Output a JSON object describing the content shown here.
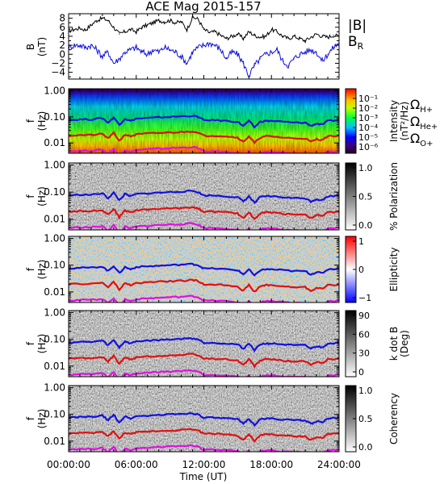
{
  "chart_data": [
    {
      "type": "line",
      "title": "ACE Mag 2015-157",
      "ylabel": "B",
      "yunit": "(nT)",
      "ylim": [
        -5.5,
        9
      ],
      "yticks": [
        "8",
        "6",
        "4",
        "2",
        "0",
        "−2",
        "−4"
      ],
      "x_time_hours": [
        0,
        0.5,
        1,
        1.5,
        2,
        2.5,
        3,
        3.5,
        4,
        4.5,
        5,
        5.5,
        6,
        6.5,
        7,
        7.5,
        8,
        8.5,
        9,
        9.5,
        10,
        10.5,
        11,
        11.5,
        12,
        12.5,
        13,
        13.5,
        14,
        14.5,
        15,
        15.5,
        16,
        16.5,
        17,
        17.5,
        18,
        18.5,
        19,
        19.5,
        20,
        20.5,
        21,
        21.5,
        22,
        22.5,
        23,
        23.5,
        24
      ],
      "series": [
        {
          "name": "|B|",
          "color": "#000000",
          "values": [
            5.2,
            5.5,
            5.8,
            5.4,
            6.5,
            7.5,
            8.0,
            7.5,
            6.0,
            4.5,
            5.0,
            5.5,
            5.0,
            6.0,
            6.5,
            7.0,
            7.5,
            7.2,
            7.5,
            7.0,
            7.2,
            5.5,
            8.2,
            7.8,
            5.5,
            4.8,
            5.0,
            4.2,
            3.5,
            4.0,
            4.5,
            3.5,
            5.0,
            4.2,
            3.8,
            4.0,
            5.5,
            5.0,
            4.0,
            3.5,
            4.0,
            3.5,
            3.0,
            3.8,
            4.5,
            4.0,
            3.8,
            4.2,
            4.0
          ]
        },
        {
          "name": "B",
          "sub": "R",
          "color": "#1010e0",
          "values": [
            1.5,
            2.0,
            2.0,
            1.5,
            2.0,
            1.0,
            -0.5,
            0.5,
            -2.0,
            -1.0,
            0.5,
            1.0,
            1.5,
            0.5,
            0.0,
            1.0,
            0.5,
            1.5,
            1.0,
            0.5,
            -0.5,
            -2.0,
            0.5,
            1.5,
            2.0,
            2.5,
            2.0,
            1.0,
            -1.0,
            0.5,
            0.0,
            -2.0,
            -4.8,
            -2.5,
            -1.0,
            0.0,
            0.5,
            1.0,
            -1.5,
            -2.5,
            -1.0,
            0.0,
            0.5,
            1.0,
            0.5,
            -1.5,
            0.0,
            1.5,
            2.5
          ]
        }
      ]
    },
    {
      "type": "heatmap",
      "ylabel": "f",
      "yunit": "(Hz)",
      "ylim": [
        0.004,
        1.2
      ],
      "ylog": true,
      "yticks": [
        "1.00",
        "0.10",
        "0.01"
      ],
      "colorbar": {
        "label": "Intensity",
        "unit": "(nT²/Hz)",
        "ticks": [
          "10⁻¹",
          "10⁻²",
          "10⁻³",
          "10⁻⁴",
          "10⁻⁵",
          "10⁻⁶"
        ],
        "scale": "rainbow"
      },
      "curves_legend": [
        {
          "label": "Ω",
          "sub": "H+",
          "color": "#1010e0"
        },
        {
          "label": "Ω",
          "sub": "He+",
          "color": "#e01010"
        },
        {
          "label": "Ω",
          "sub": "O+",
          "color": "#e010e0"
        }
      ]
    },
    {
      "type": "heatmap",
      "ylabel": "f",
      "yunit": "(Hz)",
      "ylim": [
        0.004,
        1.2
      ],
      "ylog": true,
      "yticks": [
        "1.00",
        "0.10",
        "0.01"
      ],
      "colorbar": {
        "label": "% Polarization",
        "unit": "",
        "ticks": [
          "1.0",
          "0.5",
          "0.0"
        ],
        "scale": "gray"
      }
    },
    {
      "type": "heatmap",
      "ylabel": "f",
      "yunit": "(Hz)",
      "ylim": [
        0.004,
        1.2
      ],
      "ylog": true,
      "yticks": [
        "1.00",
        "0.10",
        "0.01"
      ],
      "colorbar": {
        "label": "Ellipticity",
        "unit": "",
        "ticks": [
          "1",
          "0",
          "−1"
        ],
        "scale": "bwr"
      }
    },
    {
      "type": "heatmap",
      "ylabel": "f",
      "yunit": "(Hz)",
      "ylim": [
        0.004,
        1.2
      ],
      "ylog": true,
      "yticks": [
        "1.00",
        "0.10",
        "0.01"
      ],
      "colorbar": {
        "label": "k dot B",
        "unit": "(Deg)",
        "ticks": [
          "90",
          "60",
          "30",
          "0"
        ],
        "scale": "gray"
      }
    },
    {
      "type": "heatmap",
      "ylabel": "f",
      "yunit": "(Hz)",
      "ylim": [
        0.004,
        1.2
      ],
      "ylog": true,
      "yticks": [
        "1.00",
        "0.10",
        "0.01"
      ],
      "colorbar": {
        "label": "Coherency",
        "unit": "",
        "ticks": [
          "1.0",
          "0.5",
          "0.0"
        ],
        "scale": "gray"
      }
    }
  ],
  "gyro_curves": {
    "x_time_hours": [
      0,
      1,
      2,
      3,
      3.5,
      4,
      4.5,
      5,
      5.5,
      6,
      7,
      8,
      9,
      10,
      11,
      11.5,
      12,
      13,
      14,
      15,
      15.5,
      16,
      16.5,
      17,
      17.5,
      18,
      19,
      20,
      21,
      21.5,
      22,
      22.5,
      23,
      24
    ],
    "H+": [
      0.075,
      0.08,
      0.08,
      0.09,
      0.06,
      0.095,
      0.05,
      0.085,
      0.07,
      0.085,
      0.09,
      0.095,
      0.1,
      0.105,
      0.11,
      0.1,
      0.075,
      0.075,
      0.07,
      0.065,
      0.045,
      0.07,
      0.04,
      0.065,
      0.07,
      0.07,
      0.065,
      0.06,
      0.06,
      0.045,
      0.055,
      0.05,
      0.07,
      0.075
    ],
    "He+": [
      0.019,
      0.02,
      0.02,
      0.022,
      0.015,
      0.024,
      0.012,
      0.021,
      0.018,
      0.021,
      0.023,
      0.024,
      0.025,
      0.026,
      0.028,
      0.025,
      0.019,
      0.019,
      0.018,
      0.016,
      0.011,
      0.018,
      0.01,
      0.016,
      0.018,
      0.018,
      0.016,
      0.015,
      0.015,
      0.011,
      0.014,
      0.013,
      0.018,
      0.019
    ],
    "O+": [
      0.0047,
      0.005,
      0.005,
      0.0055,
      0.0038,
      0.006,
      0.0031,
      0.0053,
      0.0045,
      0.0053,
      0.0057,
      0.006,
      0.0063,
      0.0066,
      0.0069,
      0.0063,
      0.0047,
      0.0047,
      0.0045,
      0.0041,
      0.0029,
      0.0045,
      0.0026,
      0.0041,
      0.0045,
      0.0045,
      0.0041,
      0.0038,
      0.0038,
      0.0029,
      0.0035,
      0.0032,
      0.0045,
      0.0047
    ]
  },
  "time_axis": {
    "ticks": [
      "00:00:00",
      "06:00:00",
      "12:00:00",
      "18:00:00",
      "24:00:00"
    ],
    "label": "Time (UT)",
    "range_hours": [
      0,
      24
    ]
  }
}
